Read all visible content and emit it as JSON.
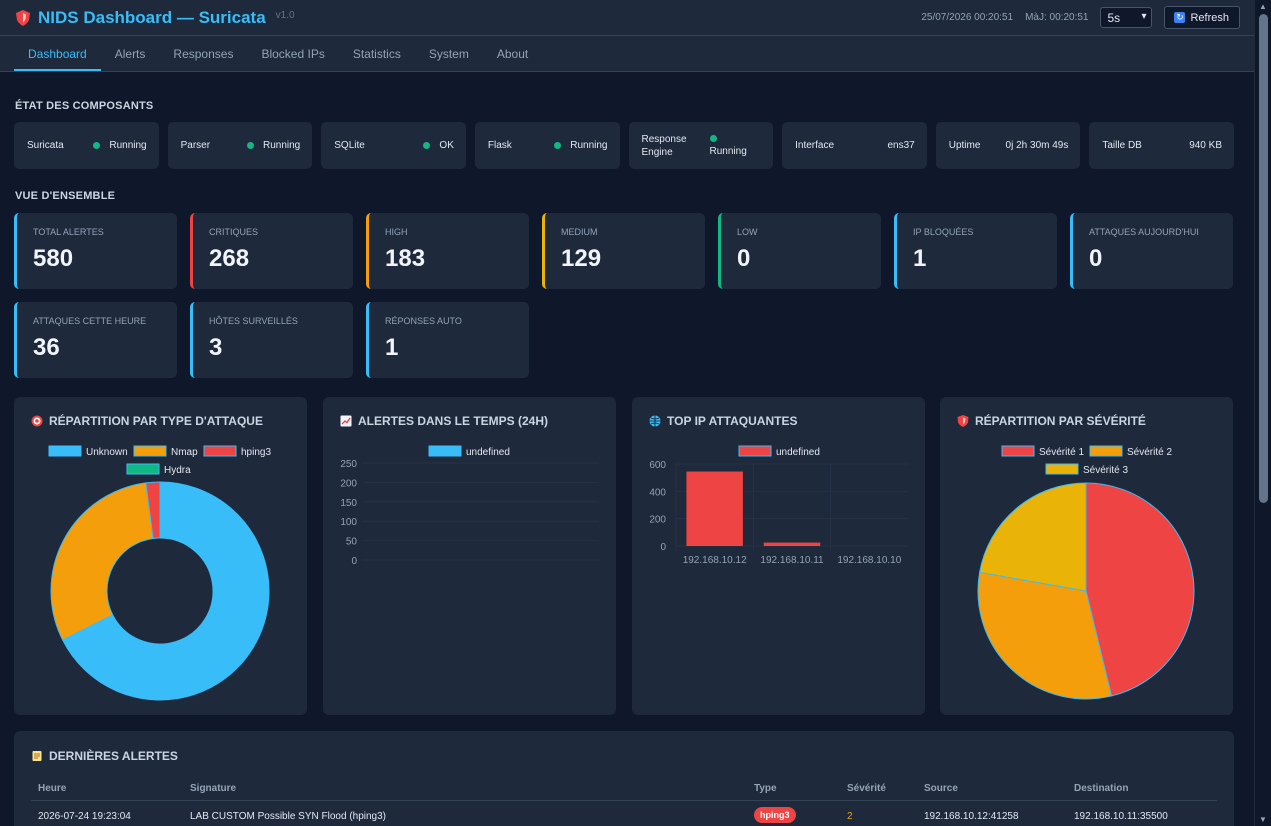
{
  "header": {
    "title": "NIDS Dashboard — Suricata",
    "version": "v1.0",
    "datetime": "25/07/2026 00:20:51",
    "last_update": "MàJ: 00:20:51",
    "refresh_interval": "5s",
    "refresh_label": "Refresh",
    "accent_color": "#38bdf8"
  },
  "nav": {
    "tabs": [
      {
        "label": "Dashboard",
        "active": true
      },
      {
        "label": "Alerts"
      },
      {
        "label": "Responses"
      },
      {
        "label": "Blocked IPs"
      },
      {
        "label": "Statistics"
      },
      {
        "label": "System"
      },
      {
        "label": "About"
      }
    ]
  },
  "components": {
    "title": "ÉTAT DES COMPOSANTS",
    "items": [
      {
        "name": "Suricata",
        "status": "Running",
        "dot": true
      },
      {
        "name": "Parser",
        "status": "Running",
        "dot": true
      },
      {
        "name": "SQLite",
        "status": "OK",
        "dot": true
      },
      {
        "name": "Flask",
        "status": "Running",
        "dot": true
      },
      {
        "name": "Response Engine",
        "status": "Running",
        "dot": true
      },
      {
        "name": "Interface",
        "status": "ens37",
        "dot": false
      },
      {
        "name": "Uptime",
        "status": "0j 2h 30m 49s",
        "dot": false
      },
      {
        "name": "Taille DB",
        "status": "940 KB",
        "dot": false
      }
    ]
  },
  "overview": {
    "title": "VUE D'ENSEMBLE",
    "stats": [
      {
        "label": "TOTAL ALERTES",
        "value": "580",
        "color": "#38bdf8"
      },
      {
        "label": "CRITIQUES",
        "value": "268",
        "color": "#ef4444"
      },
      {
        "label": "HIGH",
        "value": "183",
        "color": "#f59e0b"
      },
      {
        "label": "MEDIUM",
        "value": "129",
        "color": "#eab308"
      },
      {
        "label": "LOW",
        "value": "0",
        "color": "#10b981"
      },
      {
        "label": "IP BLOQUÉES",
        "value": "1",
        "color": "#38bdf8"
      },
      {
        "label": "ATTAQUES AUJOURD'HUI",
        "value": "0",
        "color": "#38bdf8"
      },
      {
        "label": "ATTAQUES CETTE HEURE",
        "value": "36",
        "color": "#38bdf8"
      },
      {
        "label": "HÔTES SURVEILLÉS",
        "value": "3",
        "color": "#38bdf8"
      },
      {
        "label": "RÉPONSES AUTO",
        "value": "1",
        "color": "#38bdf8"
      }
    ]
  },
  "cards": {
    "attack_type_title": "RÉPARTITION PAR TYPE D'ATTAQUE",
    "timeline_title": "ALERTES DANS LE TEMPS (24H)",
    "top_ip_title": "TOP IP ATTAQUANTES",
    "severity_title": "RÉPARTITION PAR SÉVÉRITÉ",
    "attack_type_icon": "target-icon",
    "timeline_icon": "chart-up-icon",
    "top_ip_icon": "globe-icon",
    "severity_icon": "shield-icon"
  },
  "chart_data": [
    {
      "type": "pie",
      "variant": "doughnut",
      "title": "RÉPARTITION PAR TYPE D'ATTAQUE",
      "categories": [
        "Unknown",
        "Nmap",
        "hping3",
        "Hydra"
      ],
      "values": [
        392,
        176,
        12,
        0
      ],
      "colors": [
        "#38bdf8",
        "#f59e0b",
        "#ef4444",
        "#10b981"
      ],
      "legend": "top"
    },
    {
      "type": "line",
      "title": "ALERTES DANS LE TEMPS (24H)",
      "series": [
        {
          "name": "undefined",
          "values": []
        }
      ],
      "x": [],
      "ylim": [
        0,
        250
      ],
      "yticks": [
        "250",
        "200",
        "150",
        "100",
        "50",
        "0"
      ],
      "legend": "top",
      "color": "#38bdf8"
    },
    {
      "type": "bar",
      "title": "TOP IP ATTAQUANTES",
      "categories": [
        "192.168.10.12",
        "192.168.10.11",
        "192.168.10.10"
      ],
      "series": [
        {
          "name": "undefined",
          "values": [
            545,
            25,
            0
          ]
        }
      ],
      "ylim": [
        0,
        600
      ],
      "yticks": [
        "600",
        "400",
        "200",
        "0"
      ],
      "legend": "top",
      "color": "#ef4444"
    },
    {
      "type": "pie",
      "title": "RÉPARTITION PAR SÉVÉRITÉ",
      "categories": [
        "Sévérité 1",
        "Sévérité 2",
        "Sévérité 3"
      ],
      "values": [
        268,
        183,
        129
      ],
      "colors": [
        "#ef4444",
        "#f59e0b",
        "#eab308"
      ],
      "legend": "top"
    }
  ],
  "alerts": {
    "title": "DERNIÈRES ALERTES",
    "columns": [
      "Heure",
      "Signature",
      "Type",
      "Sévérité",
      "Source",
      "Destination"
    ],
    "rows": [
      {
        "time": "2026-07-24 19:23:04",
        "signature": "LAB CUSTOM Possible SYN Flood (hping3)",
        "type": "hping3",
        "severity": "2",
        "source": "192.168.10.12:41258",
        "destination": "192.168.10.11:35500"
      }
    ]
  }
}
